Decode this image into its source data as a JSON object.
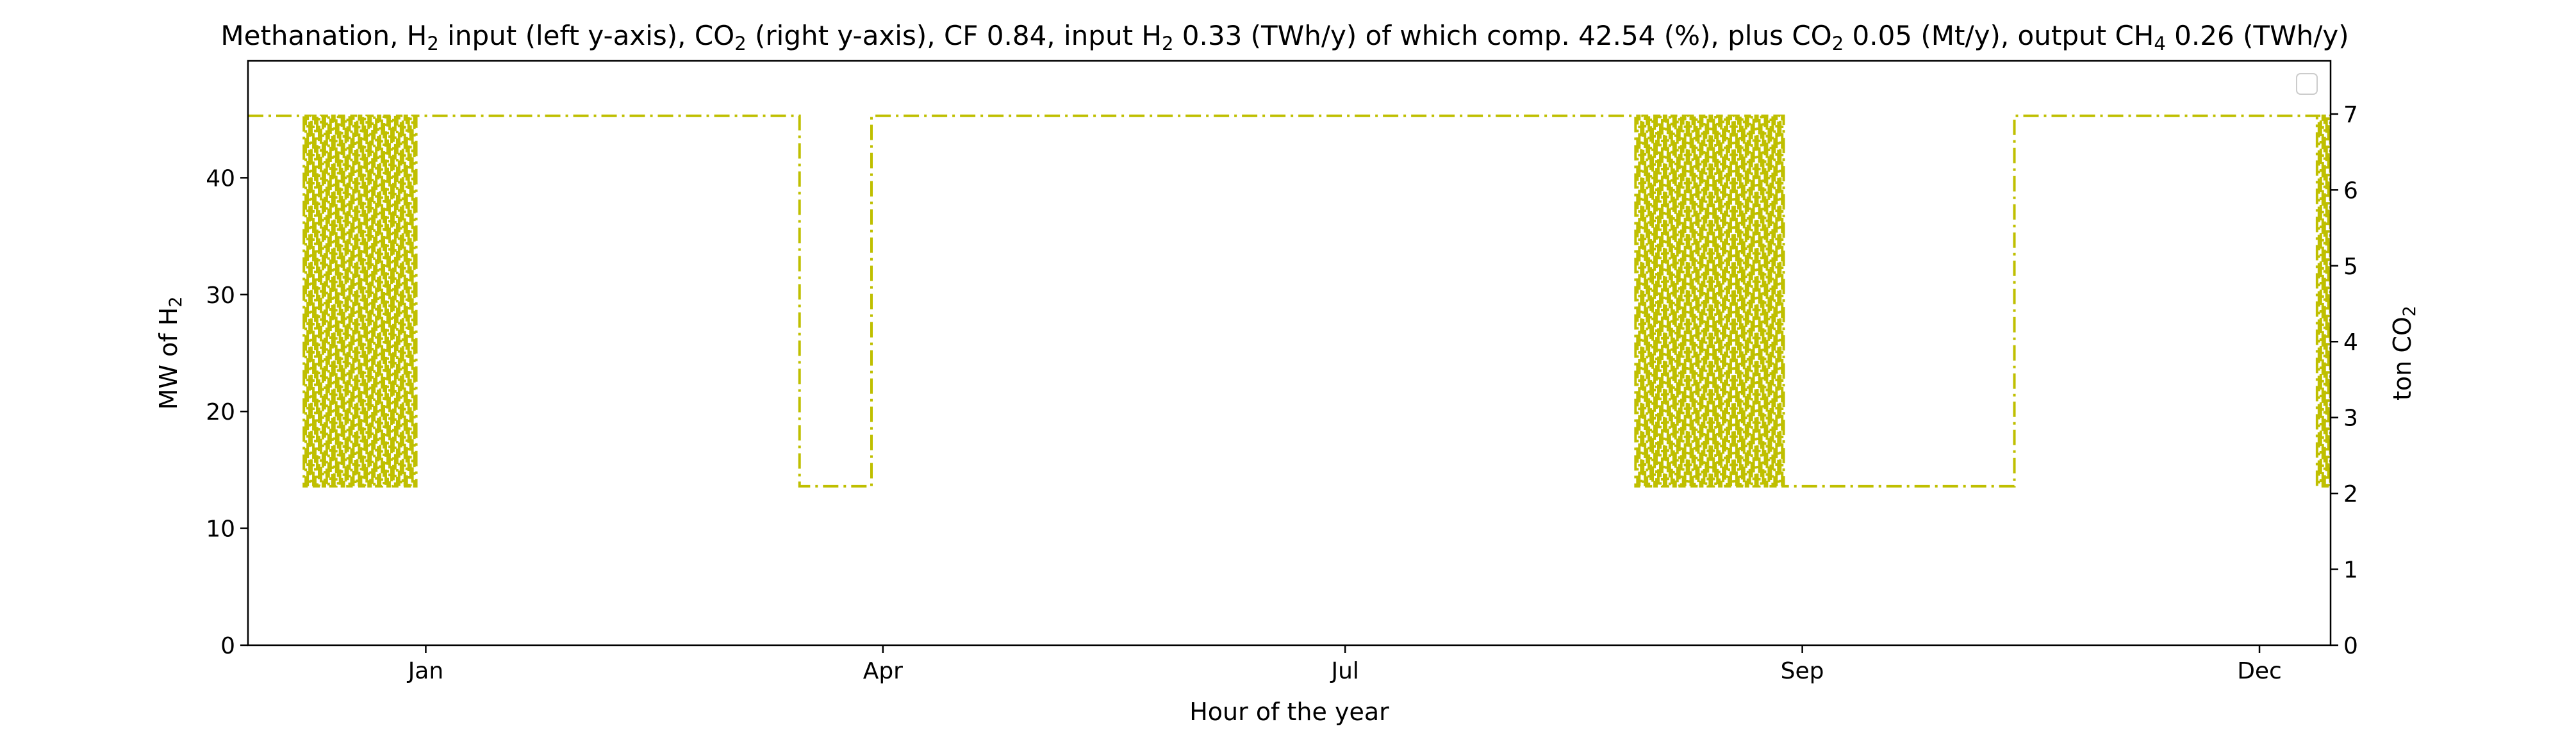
{
  "chart_data": {
    "type": "line",
    "title": {
      "p1": "Methanation, H",
      "s1": "2",
      "p2": " input (left y-axis), CO",
      "s2": "2",
      "p3": " (right y-axis), CF 0.84, input H",
      "s3": "2",
      "p4": " 0.33 (TWh/y) of which comp. 42.54 (%), plus CO",
      "s4": "2",
      "p5": " 0.05 (Mt/y), output CH",
      "s5": "4",
      "p6": " 0.26 (TWh/y)"
    },
    "xlabel": "Hour of the year",
    "ylabel_left": {
      "main": "MW of H",
      "sub": "2"
    },
    "ylabel_right": {
      "main": "ton CO",
      "sub": "2"
    },
    "x_ticks": [
      {
        "x": 744,
        "label": "Jan"
      },
      {
        "x": 2904,
        "label": "Apr"
      },
      {
        "x": 5088,
        "label": "Jul"
      },
      {
        "x": 7248,
        "label": "Sep"
      },
      {
        "x": 9408,
        "label": "Dec"
      }
    ],
    "xlim": [
      -96,
      9744
    ],
    "ylim_left": [
      0,
      50
    ],
    "ylim_right": [
      0,
      7.7
    ],
    "y_ticks_left": [
      0,
      10,
      20,
      30,
      40
    ],
    "y_ticks_right": [
      0,
      1,
      2,
      3,
      4,
      5,
      6,
      7
    ],
    "series": [
      {
        "axis": "left",
        "color": "#bfbf00",
        "linestyle": "dashdot",
        "high": 45.3,
        "low": 13.6,
        "segments": [
          {
            "x0": -96,
            "x1": 168,
            "level": "high"
          },
          {
            "x0": 168,
            "x1": 700,
            "level": "oscillating"
          },
          {
            "x0": 700,
            "x1": 2510,
            "level": "high"
          },
          {
            "x0": 2510,
            "x1": 2850,
            "level": "low"
          },
          {
            "x0": 2850,
            "x1": 6460,
            "level": "high"
          },
          {
            "x0": 6460,
            "x1": 7160,
            "level": "oscillating"
          },
          {
            "x0": 7160,
            "x1": 8250,
            "level": "low"
          },
          {
            "x0": 8250,
            "x1": 9680,
            "level": "high"
          },
          {
            "x0": 9680,
            "x1": 9744,
            "level": "oscillating"
          }
        ]
      }
    ],
    "legend": {
      "placement": "top-right",
      "entries": []
    },
    "grid": false
  }
}
